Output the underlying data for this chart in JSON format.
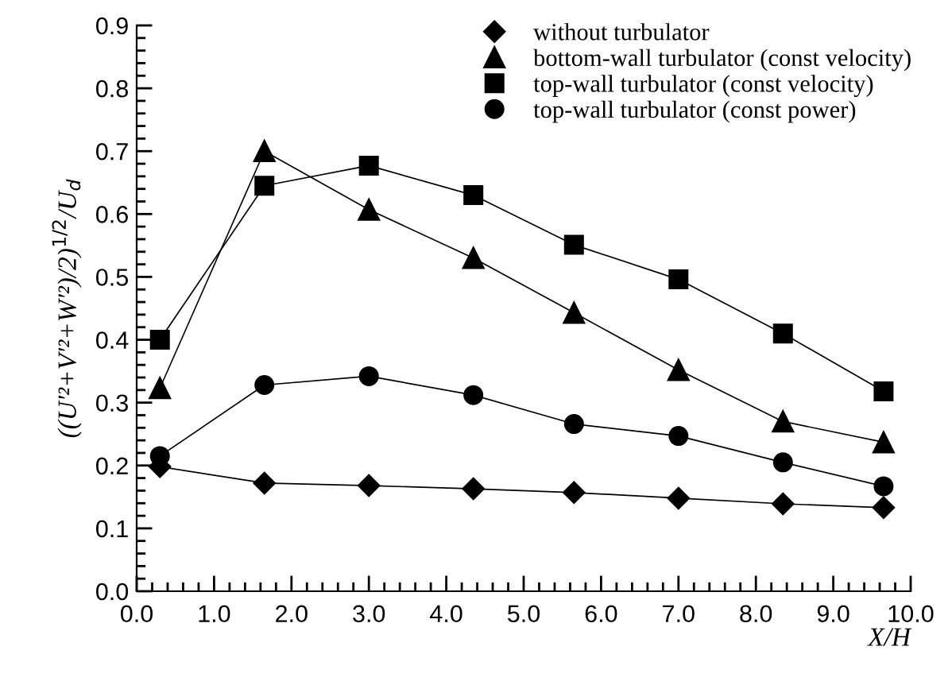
{
  "chart_data": {
    "type": "line",
    "xlabel": "X/H",
    "ylabel": "((U′²+V′²+W′²)/2)$^{1/2}$/U$_{d}$",
    "x": [
      0.3,
      1.65,
      3.0,
      4.35,
      5.65,
      7.0,
      8.35,
      9.65
    ],
    "series": [
      {
        "name": "without turbulator",
        "color": "#000000",
        "marker": "diamond",
        "values": [
          0.198,
          0.172,
          0.168,
          0.163,
          0.157,
          0.148,
          0.139,
          0.133
        ]
      },
      {
        "name": "bottom-wall turbulator (const velocity)",
        "color": "#000000",
        "marker": "triangle",
        "values": [
          0.323,
          0.7,
          0.607,
          0.53,
          0.443,
          0.352,
          0.27,
          0.237
        ]
      },
      {
        "name": "top-wall turbulator (const velocity)",
        "color": "#000000",
        "marker": "square",
        "values": [
          0.4,
          0.645,
          0.677,
          0.63,
          0.551,
          0.496,
          0.41,
          0.318
        ]
      },
      {
        "name": "top-wall turbulator (const power)",
        "color": "#000000",
        "marker": "circle",
        "values": [
          0.215,
          0.328,
          0.342,
          0.312,
          0.266,
          0.247,
          0.205,
          0.167
        ]
      }
    ],
    "xlim": [
      0.0,
      10.0
    ],
    "ylim": [
      0.0,
      0.9
    ],
    "xticks": [
      {
        "value": 0,
        "label": "0.0"
      },
      {
        "value": 1,
        "label": "1.0"
      },
      {
        "value": 2,
        "label": "2.0"
      },
      {
        "value": 3,
        "label": "3.0"
      },
      {
        "value": 4,
        "label": "4.0"
      },
      {
        "value": 5,
        "label": "5.0"
      },
      {
        "value": 6,
        "label": "6.0"
      },
      {
        "value": 7,
        "label": "7.0"
      },
      {
        "value": 8,
        "label": "8.0"
      },
      {
        "value": 9,
        "label": "9.0"
      },
      {
        "value": 10,
        "label": "10.0"
      }
    ],
    "yticks": [
      {
        "value": 0.0,
        "label": "0.0"
      },
      {
        "value": 0.1,
        "label": "0.1"
      },
      {
        "value": 0.2,
        "label": "0.2"
      },
      {
        "value": 0.3,
        "label": "0.3"
      },
      {
        "value": 0.4,
        "label": "0.4"
      },
      {
        "value": 0.5,
        "label": "0.5"
      },
      {
        "value": 0.6,
        "label": "0.6"
      },
      {
        "value": 0.7,
        "label": "0.7"
      },
      {
        "value": 0.8,
        "label": "0.8"
      },
      {
        "value": 0.9,
        "label": "0.9"
      }
    ],
    "grid": false,
    "legend": "top right",
    "line_style": "solid"
  }
}
